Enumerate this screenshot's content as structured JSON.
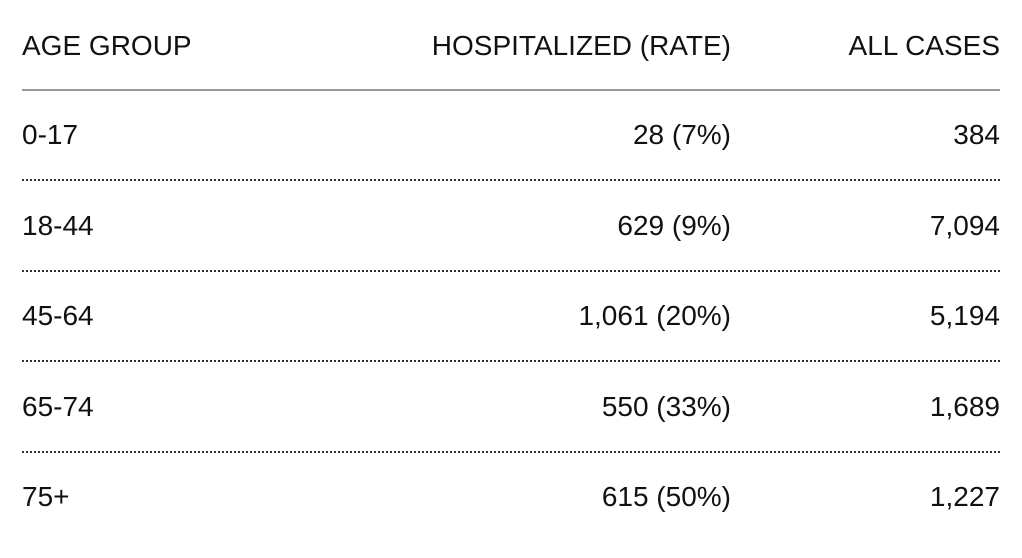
{
  "table": {
    "header": [
      "AGE GROUP",
      "HOSPITALIZED (RATE)",
      "ALL CASES"
    ],
    "rows": [
      [
        "0-17",
        "28 (7%)",
        "384"
      ],
      [
        "18-44",
        "629 (9%)",
        "7,094"
      ],
      [
        "45-64",
        "1,061 (20%)",
        "5,194"
      ],
      [
        "65-74",
        "550 (33%)",
        "1,689"
      ],
      [
        "75+",
        "615 (50%)",
        "1,227"
      ]
    ]
  }
}
